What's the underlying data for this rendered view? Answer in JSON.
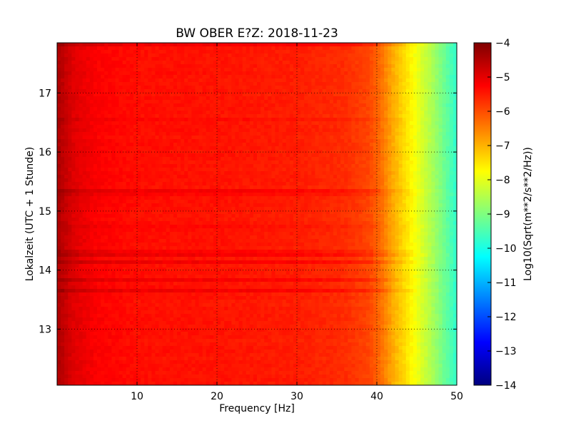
{
  "chart_data": {
    "type": "heatmap",
    "title": "BW OBER E?Z: 2018-11-23",
    "xlabel": "Frequency [Hz]",
    "ylabel": "Lokalzeit (UTC + 1 Stunde)",
    "xlim": [
      0,
      50
    ],
    "ylim": [
      17.85,
      12.05
    ],
    "x_ticks": [
      "10",
      "20",
      "30",
      "40",
      "50"
    ],
    "y_ticks": [
      "13",
      "14",
      "15",
      "16",
      "17"
    ],
    "x_tick_values": [
      10,
      20,
      30,
      40,
      50
    ],
    "y_tick_values": [
      13,
      14,
      15,
      16,
      17
    ],
    "grid": true,
    "colormap": "jet",
    "colorbar": {
      "label": "Log10(Sqrt(m**2/s**2/Hz))",
      "range": [
        -14,
        -4
      ],
      "ticks": [
        "−4",
        "−5",
        "−6",
        "−7",
        "−8",
        "−9",
        "−10",
        "−11",
        "−12",
        "−13",
        "−14"
      ],
      "tick_values": [
        -4,
        -5,
        -6,
        -7,
        -8,
        -9,
        -10,
        -11,
        -12,
        -13,
        -14
      ]
    },
    "profile": {
      "frequency_hz": [
        0,
        2,
        5,
        10,
        20,
        30,
        36,
        39,
        40.5,
        42,
        43.5,
        45,
        47,
        49,
        50
      ],
      "log10_amplitude": [
        -4.4,
        -4.9,
        -5.2,
        -5.35,
        -5.4,
        -5.5,
        -5.65,
        -5.9,
        -6.3,
        -6.9,
        -7.4,
        -7.9,
        -8.6,
        -9.4,
        -9.8
      ]
    }
  },
  "colors": {
    "jet_stops": [
      "#00007f",
      "#0000ff",
      "#007fff",
      "#00ffff",
      "#7fff7f",
      "#ffff00",
      "#ff7f00",
      "#ff0000",
      "#7f0000"
    ],
    "frame": "#000000",
    "background": "#ffffff"
  }
}
